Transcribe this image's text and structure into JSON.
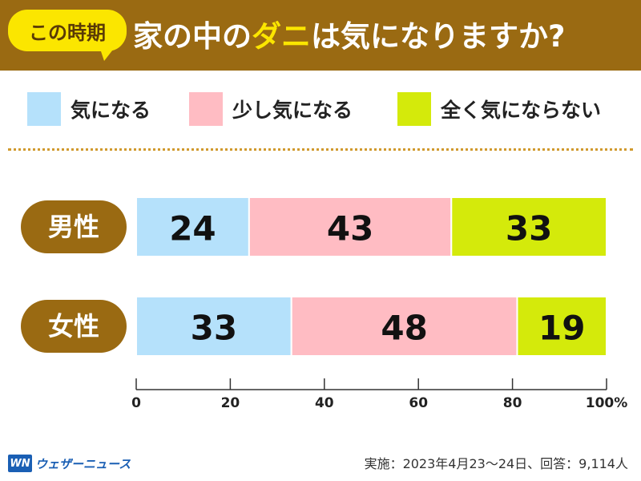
{
  "header": {
    "badge": "この時期",
    "title_prefix": "家の中の",
    "title_highlight": "ダニ",
    "title_suffix": "は気になりますか?"
  },
  "colors": {
    "header_bg": "#9a6a12",
    "badge_bg": "#fbe600",
    "row_label_bg": "#9a6a12",
    "series": [
      "#b5e1fb",
      "#ffbcc3",
      "#d4ea0b"
    ]
  },
  "chart_data": {
    "type": "bar",
    "orientation": "horizontal-stacked",
    "title": "この時期 家の中のダニは気になりますか?",
    "categories": [
      "男性",
      "女性"
    ],
    "series": [
      {
        "name": "気になる",
        "values": [
          24,
          33
        ]
      },
      {
        "name": "少し気になる",
        "values": [
          43,
          48
        ]
      },
      {
        "name": "全く気にならない",
        "values": [
          33,
          19
        ]
      }
    ],
    "xlim": [
      0,
      100
    ],
    "x_ticks": [
      "0",
      "20",
      "40",
      "60",
      "80",
      "100%"
    ],
    "xlabel": "",
    "ylabel": "",
    "legend": "top"
  },
  "source": "実施：2023年4月23〜24日、回答：9,114人",
  "logo": {
    "mark": "WN",
    "text": "ウェザーニュース"
  }
}
